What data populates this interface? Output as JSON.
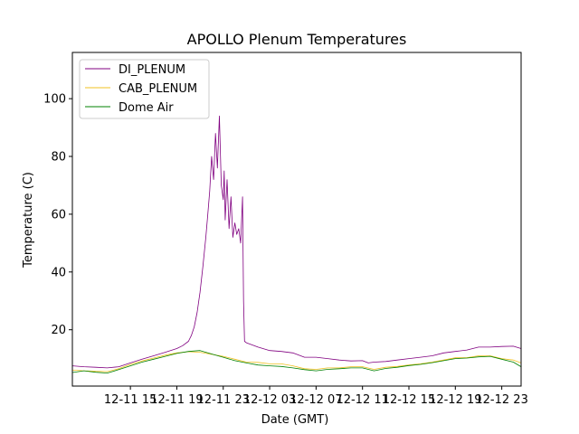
{
  "chart_data": {
    "type": "line",
    "title": "APOLLO Plenum Temperatures",
    "xlabel": "Date (GMT)",
    "ylabel": "Temperature (C)",
    "xlim": [
      "12-11 10:00",
      "12-13 00:40"
    ],
    "ylim": [
      0.5,
      116
    ],
    "grid": false,
    "legend_position": "top-left",
    "x_ticks": [
      "12-11 15",
      "12-11 19",
      "12-11 23",
      "12-12 03",
      "12-12 07",
      "12-12 11",
      "12-12 15",
      "12-12 19",
      "12-12 23"
    ],
    "y_ticks": [
      20,
      40,
      60,
      80,
      100
    ],
    "series": [
      {
        "name": "DI_PLENUM",
        "color": "#800080",
        "x": [
          "12-11 10:00",
          "12-11 11:00",
          "12-11 12:00",
          "12-11 13:00",
          "12-11 14:00",
          "12-11 15:00",
          "12-11 16:00",
          "12-11 17:00",
          "12-11 18:00",
          "12-11 19:00",
          "12-11 19:30",
          "12-11 20:00",
          "12-11 20:15",
          "12-11 20:30",
          "12-11 20:45",
          "12-11 21:00",
          "12-11 21:15",
          "12-11 21:30",
          "12-11 21:40",
          "12-11 21:50",
          "12-11 22:00",
          "12-11 22:10",
          "12-11 22:20",
          "12-11 22:30",
          "12-11 22:40",
          "12-11 22:50",
          "12-11 23:00",
          "12-11 23:05",
          "12-11 23:10",
          "12-11 23:20",
          "12-11 23:30",
          "12-11 23:40",
          "12-11 23:50",
          "12-12 00:00",
          "12-12 00:10",
          "12-12 00:20",
          "12-12 00:30",
          "12-12 00:40",
          "12-12 00:45",
          "12-12 00:50",
          "12-12 01:00",
          "12-12 02:00",
          "12-12 03:00",
          "12-12 04:00",
          "12-12 05:00",
          "12-12 06:00",
          "12-12 07:00",
          "12-12 08:00",
          "12-12 09:00",
          "12-12 10:00",
          "12-12 11:00",
          "12-12 11:30",
          "12-12 12:00",
          "12-12 13:00",
          "12-12 14:00",
          "12-12 15:00",
          "12-12 16:00",
          "12-12 17:00",
          "12-12 18:00",
          "12-12 19:00",
          "12-12 20:00",
          "12-12 21:00",
          "12-12 22:00",
          "12-12 23:00",
          "12-13 00:00",
          "12-13 00:40"
        ],
        "values": [
          7.5,
          7.2,
          7.0,
          6.8,
          7.2,
          8.5,
          9.8,
          11.0,
          12.2,
          13.5,
          14.5,
          16,
          18,
          21,
          26,
          33,
          42,
          52,
          60,
          68,
          80,
          72,
          88,
          76,
          94,
          70,
          65,
          75,
          58,
          72,
          55,
          66,
          52,
          57,
          53,
          55,
          50,
          66,
          30,
          16,
          15.5,
          14,
          12.8,
          12.5,
          12,
          10.5,
          10.5,
          10,
          9.5,
          9.2,
          9.3,
          8.5,
          8.8,
          9.0,
          9.5,
          10,
          10.5,
          11,
          12,
          12.5,
          13,
          14,
          14,
          14.2,
          14.3,
          13.5
        ]
      },
      {
        "name": "CAB_PLENUM",
        "color": "#f0c020",
        "x": [
          "12-11 10:00",
          "12-11 11:00",
          "12-11 12:00",
          "12-11 13:00",
          "12-11 14:00",
          "12-11 15:00",
          "12-11 16:00",
          "12-11 17:00",
          "12-11 18:00",
          "12-11 19:00",
          "12-11 20:00",
          "12-11 21:00",
          "12-11 22:00",
          "12-11 23:00",
          "12-12 00:00",
          "12-12 01:00",
          "12-12 02:00",
          "12-12 03:00",
          "12-12 04:00",
          "12-12 05:00",
          "12-12 06:00",
          "12-12 07:00",
          "12-12 08:00",
          "12-12 09:00",
          "12-12 10:00",
          "12-12 11:00",
          "12-12 12:00",
          "12-12 13:00",
          "12-12 14:00",
          "12-12 15:00",
          "12-12 16:00",
          "12-12 17:00",
          "12-12 18:00",
          "12-12 19:00",
          "12-12 20:00",
          "12-12 21:00",
          "12-12 22:00",
          "12-12 23:00",
          "12-13 00:00",
          "12-13 00:40"
        ],
        "values": [
          6.0,
          5.8,
          5.6,
          5.5,
          6.5,
          8.0,
          9.2,
          10.2,
          11.2,
          12.0,
          12.4,
          12.2,
          11.5,
          10.8,
          9.8,
          8.8,
          8.7,
          8.2,
          8.2,
          7.5,
          6.5,
          6.3,
          6.8,
          6.8,
          7.2,
          7.2,
          6.3,
          7.0,
          7.3,
          7.8,
          8.2,
          8.8,
          9.5,
          10.3,
          10.3,
          11.0,
          11.0,
          10.0,
          9.5,
          8.5
        ]
      },
      {
        "name": "Dome Air",
        "color": "#008000",
        "x": [
          "12-11 10:00",
          "12-11 11:00",
          "12-11 12:00",
          "12-11 13:00",
          "12-11 14:00",
          "12-11 15:00",
          "12-11 16:00",
          "12-11 17:00",
          "12-11 18:00",
          "12-11 19:00",
          "12-11 20:00",
          "12-11 21:00",
          "12-11 22:00",
          "12-11 23:00",
          "12-12 00:00",
          "12-12 01:00",
          "12-12 02:00",
          "12-12 03:00",
          "12-12 04:00",
          "12-12 05:00",
          "12-12 06:00",
          "12-12 07:00",
          "12-12 08:00",
          "12-12 09:00",
          "12-12 10:00",
          "12-12 11:00",
          "12-12 12:00",
          "12-12 13:00",
          "12-12 14:00",
          "12-12 15:00",
          "12-12 16:00",
          "12-12 17:00",
          "12-12 18:00",
          "12-12 19:00",
          "12-12 20:00",
          "12-12 21:00",
          "12-12 22:00",
          "12-12 23:00",
          "12-13 00:00",
          "12-13 00:40"
        ],
        "values": [
          5.2,
          5.8,
          5.3,
          5.0,
          6.2,
          7.5,
          8.8,
          9.8,
          10.8,
          11.8,
          12.5,
          12.8,
          11.6,
          10.5,
          9.3,
          8.5,
          7.8,
          7.5,
          7.3,
          6.8,
          6.2,
          5.8,
          6.3,
          6.5,
          6.8,
          6.8,
          5.8,
          6.6,
          7.0,
          7.6,
          8.0,
          8.6,
          9.3,
          10.0,
          10.2,
          10.6,
          10.8,
          9.8,
          8.8,
          7.2
        ]
      }
    ]
  }
}
